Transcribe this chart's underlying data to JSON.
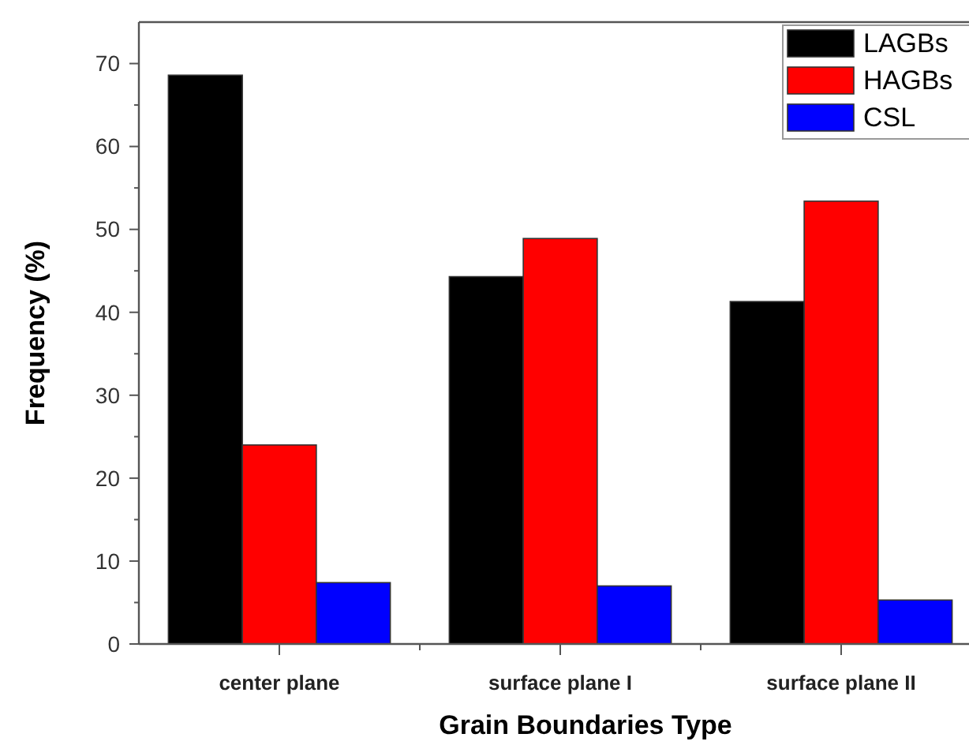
{
  "chart_data": {
    "type": "bar",
    "xlabel": "Grain Boundaries Type",
    "ylabel": "Frequency (%)",
    "categories": [
      "center plane",
      "surface plane I",
      "surface plane II"
    ],
    "series": [
      {
        "name": "LAGBs",
        "color": "#000000",
        "values": [
          68.6,
          44.3,
          41.3
        ]
      },
      {
        "name": "HAGBs",
        "color": "#ff0000",
        "values": [
          24.0,
          48.9,
          53.4
        ]
      },
      {
        "name": "CSL",
        "color": "#0000ff",
        "values": [
          7.4,
          7.0,
          5.3
        ]
      }
    ],
    "ylim": [
      0,
      75
    ],
    "yticks": [
      0,
      {
        "value": 5,
        "label": null
      },
      10,
      {
        "value": 15,
        "label": null
      },
      20,
      {
        "value": 25,
        "label": null
      },
      30,
      {
        "value": 35,
        "label": null
      },
      40,
      {
        "value": 45,
        "label": null
      },
      50,
      {
        "value": 55,
        "label": null
      },
      60,
      {
        "value": 65,
        "label": null
      },
      70
    ],
    "grid": false,
    "legend": "top right"
  }
}
